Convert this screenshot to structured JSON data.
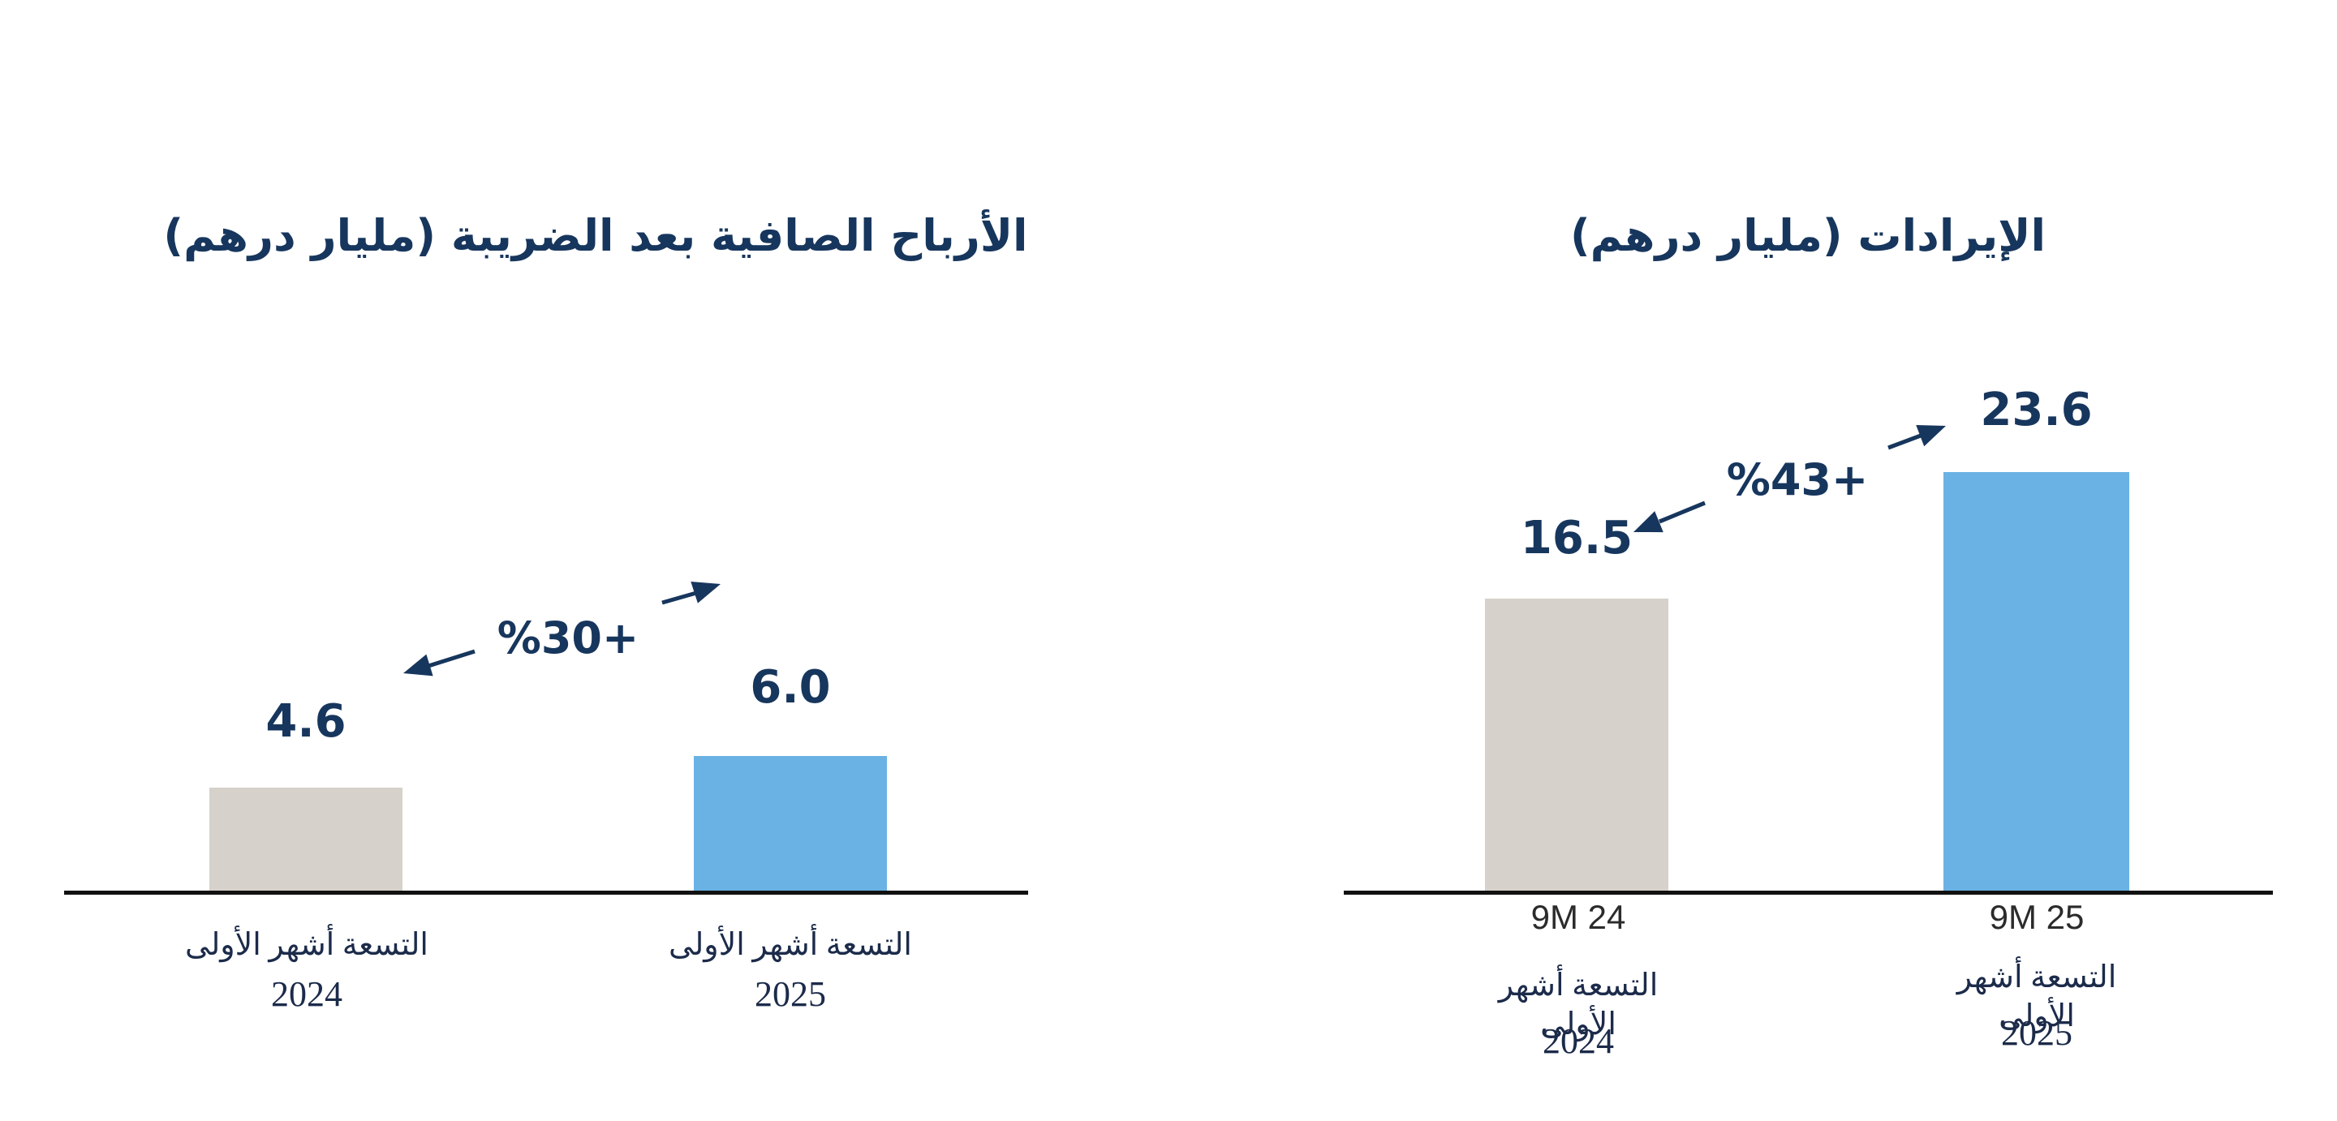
{
  "colors": {
    "navy": "#17365d",
    "axis": "#111111",
    "tick_text": "#2b2b2b",
    "serif_text": "#1c2b4a",
    "bar_gray": "#d6d1ca",
    "bar_blue": "#6ab2e4",
    "background": "#ffffff"
  },
  "chart_data": [
    {
      "type": "bar",
      "title": "الأرباح الصافية بعد الضريبة (مليار درهم)",
      "categories": [
        "التسعة أشهر الأولى 2024",
        "التسعة أشهر الأولى 2025"
      ],
      "values": [
        4.6,
        6.0
      ],
      "value_labels": [
        "4.6",
        "6.0"
      ],
      "growth_annotation": "%30+",
      "bar_colors": [
        "#d6d1ca",
        "#6ab2e4"
      ],
      "x_labels": [
        {
          "line1": "التسعة أشهر الأولى",
          "year": "2024"
        },
        {
          "line1": "التسعة أشهر الأولى",
          "year": "2025"
        }
      ],
      "layout_hints": {
        "rtl": true,
        "has_y_axis": false,
        "grid": false,
        "legend": "none",
        "value_labels_above_bars": true
      }
    },
    {
      "type": "bar",
      "title": "الإيرادات (مليار درهم)",
      "categories": [
        "9M 24",
        "9M 25"
      ],
      "values": [
        16.5,
        23.6
      ],
      "value_labels": [
        "16.5",
        "23.6"
      ],
      "growth_annotation": "%43+",
      "bar_colors": [
        "#d6d1ca",
        "#6ab2e4"
      ],
      "x_labels": [
        {
          "tick": "9M 24",
          "line1": "التسعة أشهر الأولى",
          "year": "2024"
        },
        {
          "tick": "9M 25",
          "line1": "التسعة أشهر الأولى",
          "year": "2025"
        }
      ],
      "layout_hints": {
        "rtl": true,
        "has_y_axis": false,
        "grid": false,
        "legend": "none",
        "value_labels_above_bars": true
      }
    }
  ]
}
